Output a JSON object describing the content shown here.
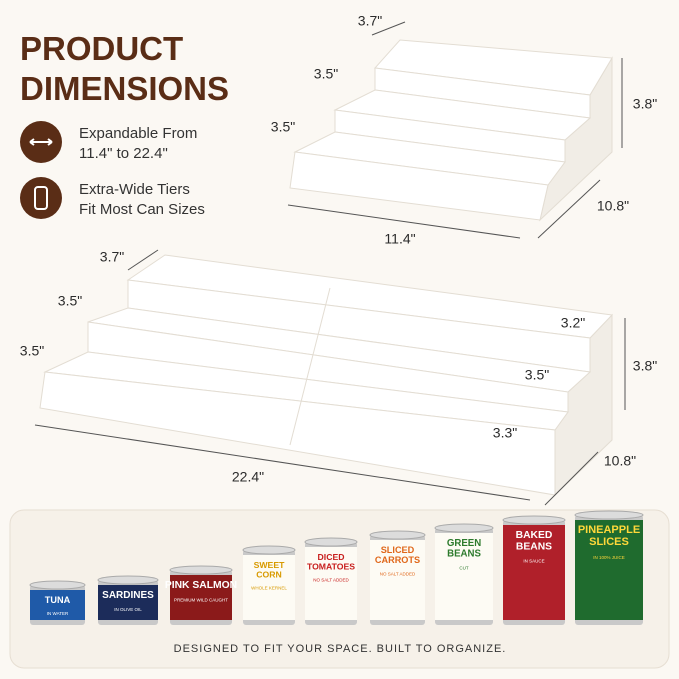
{
  "header": {
    "title": [
      "PRODUCT",
      "DIMENSIONS"
    ]
  },
  "features": [
    {
      "lines": [
        "Expandable From",
        "11.4\"  to  22.4\""
      ]
    },
    {
      "lines": [
        "Extra-Wide Tiers",
        "Fit Most Can Sizes"
      ]
    }
  ],
  "small_shelf": {
    "dimensions": [
      "3.7\"",
      "3.5\"",
      "3.5\"",
      "3.8\"",
      "11.4\"",
      "10.8\""
    ]
  },
  "large_shelf": {
    "dimensions": [
      "3.7\"",
      "3.5\"",
      "3.5\"",
      "3.2\"",
      "3.5\"",
      "3.3\"",
      "3.8\"",
      "22.4\"",
      "10.8\""
    ]
  },
  "cans": [
    {
      "name": [
        "TUNA"
      ],
      "sub": "IN WATER"
    },
    {
      "name": [
        "SARDINES"
      ],
      "sub": "IN OLIVE OIL"
    },
    {
      "name": [
        "PINK SALMON"
      ],
      "sub": "PREMIUM WILD CAUGHT"
    },
    {
      "name": [
        "SWEET",
        "CORN"
      ],
      "sub": "WHOLE KERNEL"
    },
    {
      "name": [
        "DICED",
        "TOMATOES"
      ],
      "sub": "NO SALT ADDED"
    },
    {
      "name": [
        "SLICED",
        "CARROTS"
      ],
      "sub": "NO SALT ADDED"
    },
    {
      "name": [
        "GREEN",
        "BEANS"
      ],
      "sub": "CUT"
    },
    {
      "name": [
        "BAKED",
        "BEANS"
      ],
      "sub": "IN SAUCE"
    },
    {
      "name": [
        "PINEAPPLE",
        "SLICES"
      ],
      "sub": "IN 100% JUICE"
    }
  ],
  "footer": "DESIGNED TO FIT YOUR SPACE. BUILT TO ORGANIZE."
}
